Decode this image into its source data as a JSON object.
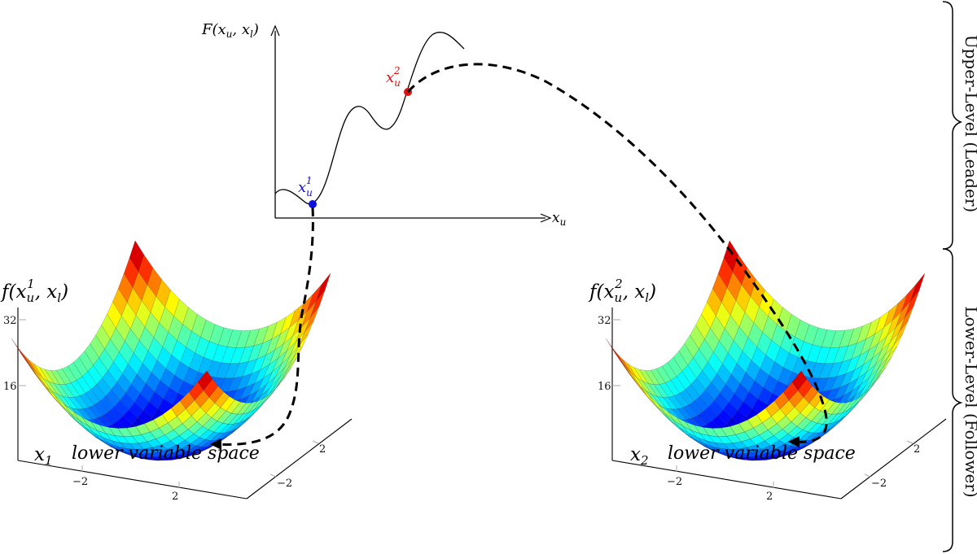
{
  "upper_plot": {
    "y_axis_label": "F(x_u, x_l)",
    "x_axis_label": "x_u",
    "point1": {
      "label": "x_u^1",
      "color": "#1010e0"
    },
    "point2": {
      "label": "x_u^2",
      "color": "#e01010"
    }
  },
  "lower_left": {
    "z_label": "f(x_u^1, x_l)",
    "z_ticks": [
      "32",
      "16"
    ],
    "x1_label": "x_1",
    "space_label": "lower variable space",
    "x_ticks": [
      "−2",
      "2"
    ],
    "y_ticks": [
      "2",
      "−2"
    ]
  },
  "lower_right": {
    "z_label": "f(x_u^2, x_l)",
    "z_ticks": [
      "32",
      "16"
    ],
    "x2_label": "x_2",
    "space_label": "lower variable space",
    "x_ticks": [
      "−2",
      "2"
    ],
    "y_ticks": [
      "2",
      "−2"
    ]
  },
  "side_labels": {
    "upper": "Upper-Level (Leader)",
    "lower": "Lower-Level (Follower)"
  },
  "colors": {
    "colormap": "jet",
    "curve": "#000000",
    "dashed_path": "#000000"
  }
}
